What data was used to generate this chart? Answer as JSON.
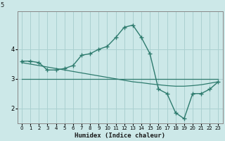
{
  "xlabel": "Humidex (Indice chaleur)",
  "bg_color": "#cce8e8",
  "grid_color": "#aad0d0",
  "line_color": "#2e7b6e",
  "x_values": [
    0,
    1,
    2,
    3,
    4,
    5,
    6,
    7,
    8,
    9,
    10,
    11,
    12,
    13,
    14,
    15,
    16,
    17,
    18,
    19,
    20,
    21,
    22,
    23
  ],
  "line1_y": [
    3.6,
    3.6,
    3.55,
    3.3,
    3.3,
    3.35,
    3.45,
    3.8,
    3.85,
    4.0,
    4.1,
    4.4,
    4.75,
    4.82,
    4.4,
    3.85,
    2.65,
    2.5,
    1.85,
    1.65,
    2.5,
    2.5,
    2.65,
    2.9
  ],
  "line2_y": [
    3.55,
    3.5,
    3.45,
    3.4,
    3.35,
    3.3,
    3.25,
    3.2,
    3.15,
    3.1,
    3.05,
    3.0,
    2.95,
    2.9,
    2.87,
    2.83,
    2.8,
    2.77,
    2.75,
    2.75,
    2.77,
    2.8,
    2.85,
    2.9
  ],
  "line3_y": [
    3.0,
    3.0,
    3.0,
    3.0,
    3.0,
    3.0,
    3.0,
    3.0,
    3.0,
    3.0,
    3.0,
    3.0,
    3.0,
    3.0,
    3.0,
    3.0,
    3.0,
    3.0,
    3.0,
    3.0,
    3.0,
    3.0,
    3.0,
    3.0
  ],
  "ylim": [
    1.5,
    5.3
  ],
  "yticks": [
    2,
    3,
    4
  ],
  "ytick_top_label": "5",
  "xticks": [
    0,
    1,
    2,
    3,
    4,
    5,
    6,
    7,
    8,
    9,
    10,
    11,
    12,
    13,
    14,
    15,
    16,
    17,
    18,
    19,
    20,
    21,
    22,
    23
  ]
}
